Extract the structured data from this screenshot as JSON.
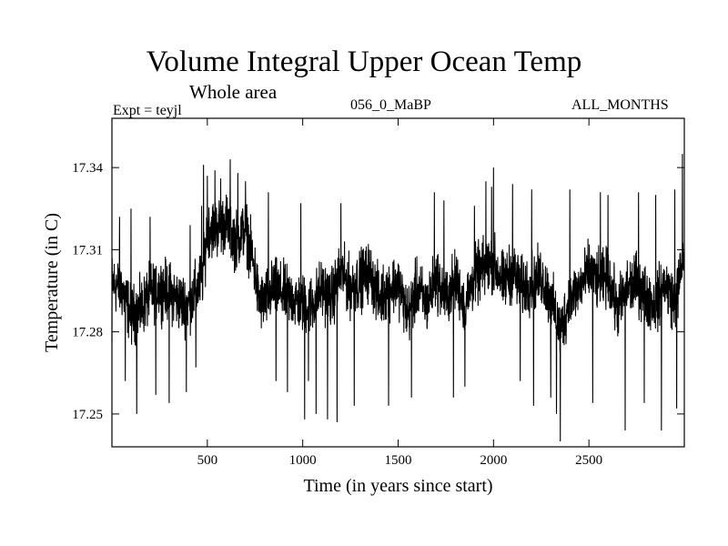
{
  "chart_data": {
    "type": "line",
    "title": "Volume Integral Upper Ocean Temp",
    "subtitle": "Whole area",
    "header_left": "Expt = teyjl",
    "header_center": "056_0_MaBP",
    "header_right": "ALL_MONTHS",
    "xlabel": "Time (in years since start)",
    "ylabel": "Temperature (in C)",
    "xlim": [
      0,
      3000
    ],
    "ylim": [
      17.238,
      17.358
    ],
    "xticks": [
      500,
      1000,
      1500,
      2000,
      2500
    ],
    "xtick_labels": [
      "500",
      "1000",
      "1500",
      "2000",
      "2500"
    ],
    "yticks": [
      17.25,
      17.28,
      17.31,
      17.34
    ],
    "ytick_labels": [
      "17.25",
      "17.28",
      "17.31",
      "17.34"
    ],
    "grid": false,
    "line_color": "#000000",
    "series": [
      {
        "name": "Volume Integral Upper Ocean Temp",
        "sampling": "annual values, years 1-3000 (noisy fluctuation around the envelope)",
        "envelope_x": [
          0,
          50,
          100,
          150,
          200,
          250,
          300,
          350,
          400,
          450,
          480,
          500,
          550,
          600,
          650,
          700,
          750,
          770,
          800,
          850,
          900,
          950,
          1000,
          1050,
          1100,
          1150,
          1200,
          1250,
          1300,
          1350,
          1400,
          1450,
          1500,
          1550,
          1600,
          1650,
          1700,
          1750,
          1800,
          1850,
          1900,
          1950,
          2000,
          2050,
          2100,
          2150,
          2200,
          2250,
          2300,
          2350,
          2400,
          2450,
          2500,
          2550,
          2600,
          2650,
          2700,
          2750,
          2800,
          2850,
          2900,
          2950,
          3000
        ],
        "envelope_y": [
          17.298,
          17.296,
          17.286,
          17.288,
          17.294,
          17.296,
          17.295,
          17.291,
          17.29,
          17.296,
          17.302,
          17.318,
          17.318,
          17.32,
          17.313,
          17.318,
          17.302,
          17.291,
          17.291,
          17.296,
          17.294,
          17.292,
          17.29,
          17.29,
          17.296,
          17.292,
          17.302,
          17.296,
          17.299,
          17.302,
          17.292,
          17.296,
          17.298,
          17.286,
          17.296,
          17.29,
          17.3,
          17.292,
          17.299,
          17.29,
          17.3,
          17.303,
          17.305,
          17.298,
          17.302,
          17.296,
          17.298,
          17.3,
          17.292,
          17.28,
          17.292,
          17.296,
          17.302,
          17.298,
          17.3,
          17.288,
          17.296,
          17.298,
          17.293,
          17.29,
          17.298,
          17.29,
          17.308
        ],
        "peaks_x": [
          40,
          100,
          130,
          200,
          300,
          410,
          470,
          480,
          500,
          540,
          570,
          620,
          660,
          700,
          820,
          860,
          990,
          1130,
          1200,
          1450,
          1690,
          1740,
          1900,
          1960,
          1990,
          2000,
          2100,
          2200,
          2400,
          2560,
          2600,
          2760,
          2850,
          2950,
          2990
        ],
        "peaks_y": [
          17.322,
          17.325,
          17.32,
          17.322,
          17.32,
          17.319,
          17.326,
          17.341,
          17.337,
          17.339,
          17.336,
          17.343,
          17.338,
          17.335,
          17.331,
          17.323,
          17.327,
          17.328,
          17.327,
          17.329,
          17.331,
          17.328,
          17.326,
          17.335,
          17.333,
          17.34,
          17.334,
          17.332,
          17.332,
          17.331,
          17.33,
          17.331,
          17.33,
          17.332,
          17.345
        ],
        "troughs_x": [
          0,
          70,
          130,
          230,
          300,
          390,
          440,
          860,
          920,
          1010,
          1030,
          1070,
          1130,
          1180,
          1270,
          1450,
          1570,
          1790,
          1850,
          2140,
          2210,
          2300,
          2330,
          2350,
          2520,
          2690,
          2790,
          2880,
          2960
        ],
        "troughs_y": [
          17.276,
          17.262,
          17.25,
          17.257,
          17.254,
          17.258,
          17.267,
          17.262,
          17.258,
          17.248,
          17.262,
          17.25,
          17.248,
          17.247,
          17.253,
          17.253,
          17.256,
          17.256,
          17.26,
          17.262,
          17.253,
          17.256,
          17.25,
          17.24,
          17.254,
          17.244,
          17.254,
          17.244,
          17.252
        ]
      }
    ]
  }
}
